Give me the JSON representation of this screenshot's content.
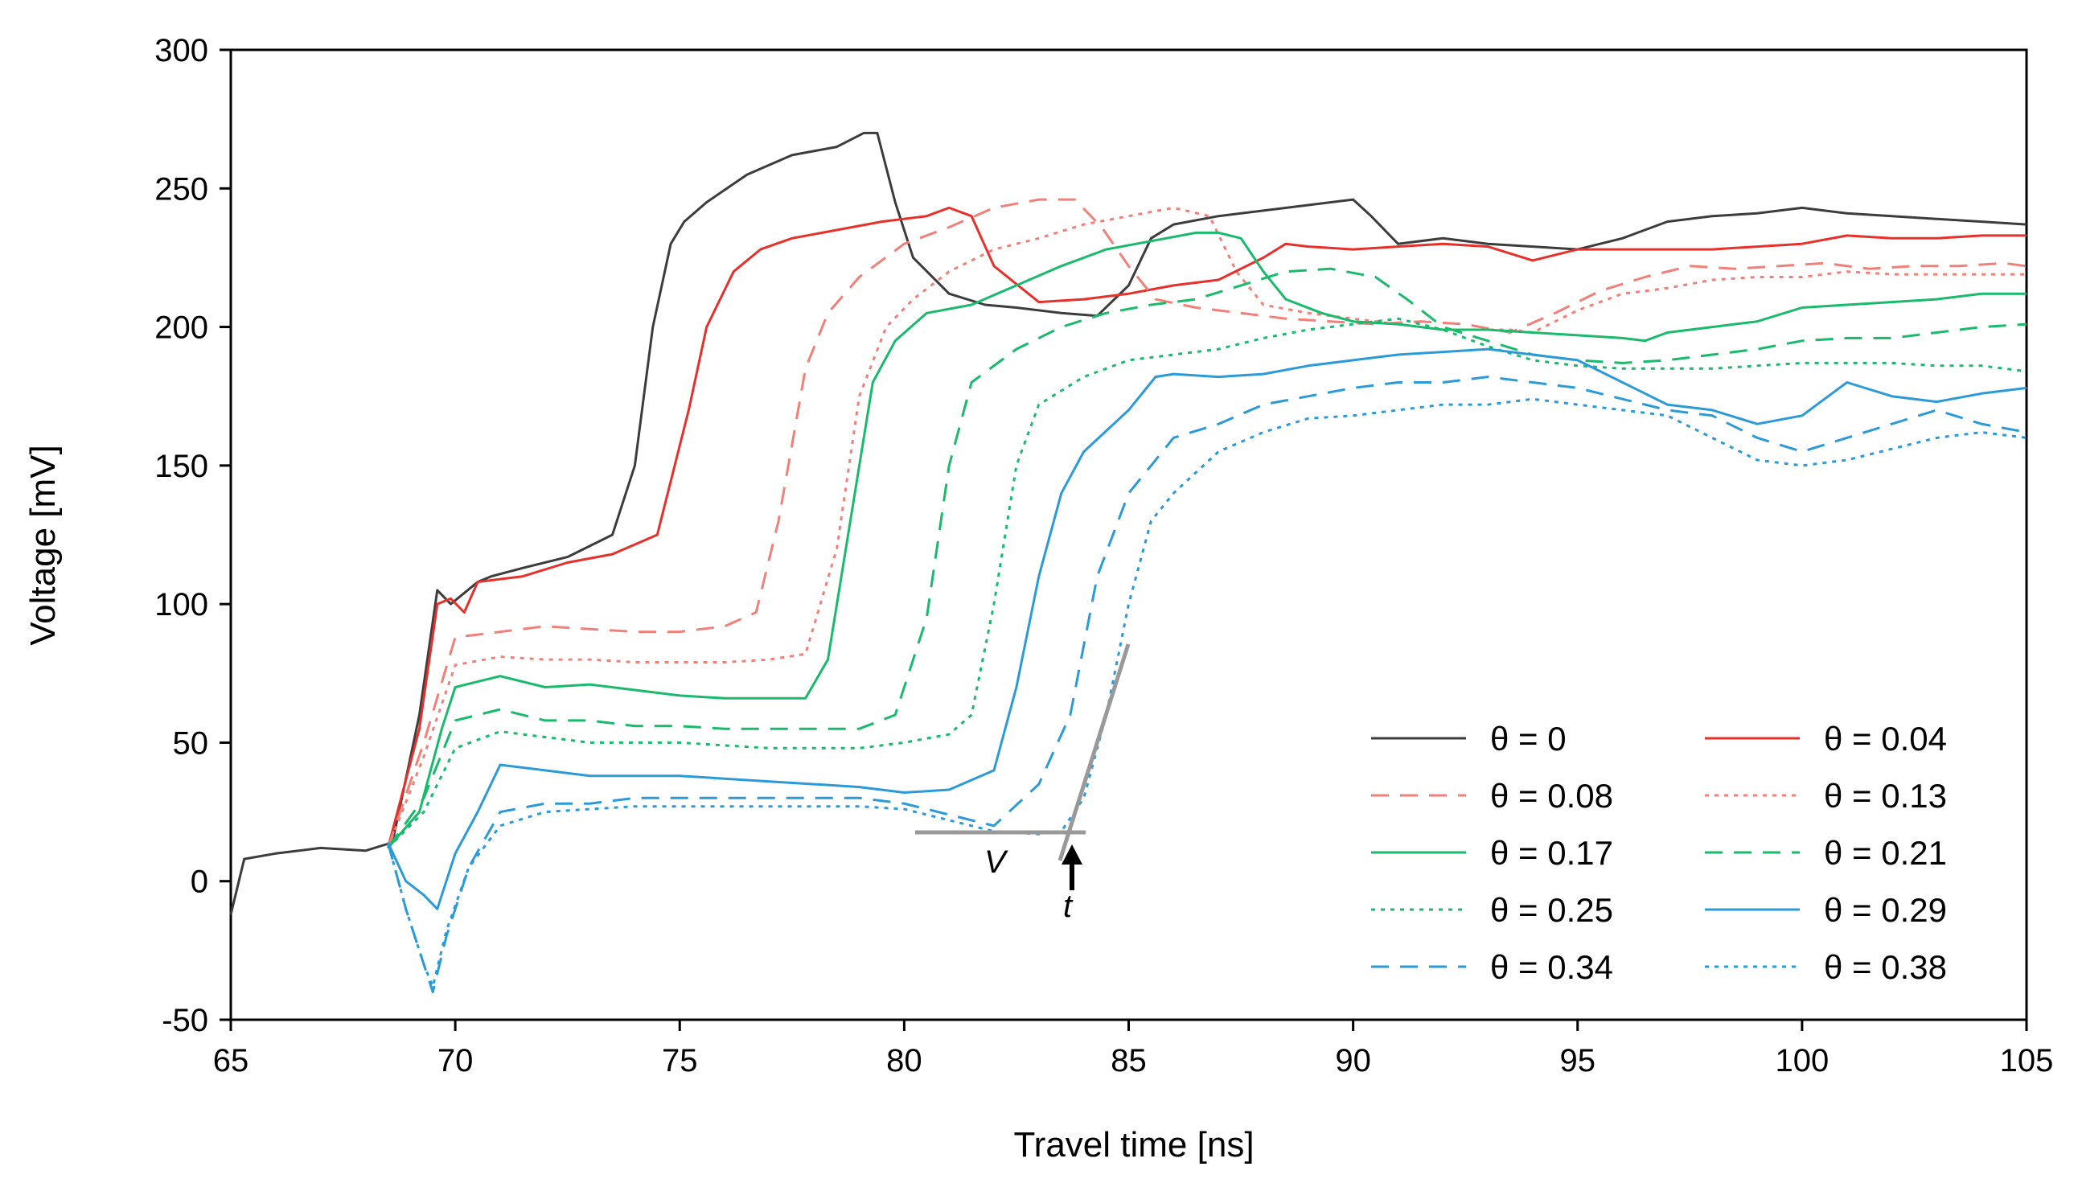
{
  "chart_data": {
    "type": "line",
    "title": "",
    "xlabel": "Travel time [ns]",
    "ylabel": "Voltage [mV]",
    "xlim": [
      65,
      105
    ],
    "ylim": [
      -50,
      300
    ],
    "xticks": [
      "65",
      "70",
      "75",
      "80",
      "85",
      "90",
      "95",
      "100",
      "105"
    ],
    "yticks": [
      "-50",
      "0",
      "50",
      "100",
      "150",
      "200",
      "250",
      "300"
    ],
    "grid": false,
    "legend_position": "bottom-right",
    "series": [
      {
        "name": "θ = 0",
        "color": "#3c3c3c",
        "dash": "solid",
        "x": [
          65,
          65.3,
          66,
          67,
          68,
          68.6,
          69.2,
          69.6,
          69.9,
          70.2,
          70.5,
          70.8,
          71.5,
          72.5,
          73.5,
          74,
          74.4,
          74.8,
          75.1,
          75.6,
          76.5,
          77.5,
          78.5,
          79.1,
          79.4,
          79.8,
          80.2,
          81,
          81.8,
          82.5,
          83.5,
          84.3,
          85,
          85.5,
          86,
          87,
          88,
          89,
          90,
          90.4,
          91,
          92,
          93,
          94,
          95,
          96,
          97,
          98,
          99,
          100,
          101,
          102,
          103,
          104,
          105
        ],
        "y": [
          -12,
          8,
          10,
          12,
          11,
          14,
          60,
          105,
          100,
          104,
          108,
          110,
          113,
          117,
          125,
          150,
          200,
          230,
          238,
          245,
          255,
          262,
          265,
          270,
          270,
          245,
          225,
          212,
          208,
          207,
          205,
          204,
          215,
          232,
          237,
          240,
          242,
          244,
          246,
          240,
          230,
          232,
          230,
          229,
          228,
          232,
          238,
          240,
          241,
          243,
          241,
          240,
          239,
          238,
          237
        ]
      },
      {
        "name": "θ = 0.04",
        "color": "#e8302a",
        "dash": "solid",
        "x": [
          68.5,
          69.2,
          69.6,
          69.9,
          70.2,
          70.5,
          71.5,
          72.5,
          73.5,
          74.5,
          75.2,
          75.6,
          76.2,
          76.8,
          77.5,
          78.5,
          79.5,
          80.5,
          81,
          81.5,
          82,
          83,
          84,
          85,
          86,
          87,
          88,
          88.5,
          89,
          90,
          91,
          92,
          93,
          94,
          95,
          96,
          97,
          98,
          99,
          100,
          101,
          102,
          103,
          104,
          105
        ],
        "y": [
          12,
          55,
          100,
          102,
          97,
          108,
          110,
          115,
          118,
          125,
          170,
          200,
          220,
          228,
          232,
          235,
          238,
          240,
          243,
          240,
          222,
          209,
          210,
          212,
          215,
          217,
          225,
          230,
          229,
          228,
          229,
          230,
          229,
          224,
          228,
          228,
          228,
          228,
          229,
          230,
          233,
          232,
          232,
          233,
          233
        ]
      },
      {
        "name": "θ = 0.08",
        "color": "#f28078",
        "dash": "long",
        "x": [
          68.5,
          69.3,
          70,
          71,
          72,
          73,
          74,
          75,
          76,
          76.7,
          77.2,
          77.8,
          78.3,
          79,
          80,
          81,
          82,
          83,
          83.8,
          84.4,
          85,
          85.6,
          86.5,
          87.5,
          88.5,
          89.5,
          90.5,
          91.5,
          92.5,
          93.5,
          94.5,
          95.5,
          96.5,
          97.5,
          98.5,
          99.5,
          100.5,
          101.5,
          102.5,
          103.5,
          104.5,
          105
        ],
        "y": [
          12,
          50,
          88,
          90,
          92,
          91,
          90,
          90,
          92,
          97,
          130,
          185,
          205,
          218,
          230,
          236,
          243,
          246,
          246,
          236,
          222,
          210,
          207,
          205,
          203,
          202,
          201,
          202,
          201,
          198,
          205,
          213,
          218,
          222,
          221,
          222,
          223,
          221,
          222,
          222,
          223,
          222
        ]
      },
      {
        "name": "θ = 0.13",
        "color": "#f28078",
        "dash": "dot",
        "x": [
          68.5,
          69.3,
          70,
          71,
          72,
          73,
          74,
          75,
          76,
          77,
          77.8,
          78.5,
          79,
          79.6,
          80.2,
          81,
          82,
          83,
          84,
          85,
          86,
          86.8,
          87.4,
          88,
          89,
          90,
          91,
          92,
          93,
          93.5,
          94,
          95,
          96,
          97,
          98,
          99,
          100,
          101,
          102,
          103,
          104,
          105
        ],
        "y": [
          12,
          45,
          78,
          81,
          80,
          80,
          79,
          79,
          79,
          80,
          82,
          120,
          175,
          200,
          210,
          220,
          228,
          232,
          237,
          240,
          243,
          240,
          220,
          208,
          205,
          203,
          201,
          199,
          199,
          199,
          198,
          206,
          212,
          214,
          217,
          218,
          218,
          220,
          219,
          219,
          219,
          219
        ]
      },
      {
        "name": "θ = 0.17",
        "color": "#1aba6c",
        "dash": "solid",
        "x": [
          68.5,
          69.2,
          69.7,
          70,
          70.5,
          71,
          72,
          73,
          74,
          75,
          76,
          77,
          77.8,
          78.3,
          78.8,
          79.3,
          79.8,
          80.5,
          81.5,
          82.5,
          83.5,
          84.5,
          85.5,
          86.5,
          87,
          87.5,
          88,
          88.5,
          89.3,
          90,
          91,
          92,
          93,
          94,
          95,
          96,
          96.5,
          97,
          98,
          99,
          100,
          101,
          102,
          103,
          104,
          105
        ],
        "y": [
          12,
          25,
          55,
          70,
          72,
          74,
          70,
          71,
          69,
          67,
          66,
          66,
          66,
          80,
          130,
          180,
          195,
          205,
          208,
          215,
          222,
          228,
          231,
          234,
          234,
          232,
          220,
          210,
          205,
          202,
          201,
          199,
          199,
          198,
          197,
          196,
          195,
          198,
          200,
          202,
          207,
          208,
          209,
          210,
          212,
          212
        ]
      },
      {
        "name": "θ = 0.21",
        "color": "#1aba6c",
        "dash": "long",
        "x": [
          68.5,
          69.3,
          70,
          71,
          72,
          73,
          74,
          75,
          76,
          77,
          78,
          79,
          79.8,
          80.5,
          81,
          81.5,
          82.5,
          83.5,
          84.5,
          85.5,
          86.5,
          87.5,
          88.5,
          89.5,
          90.5,
          91.2,
          92,
          93,
          94,
          95,
          96,
          97,
          98,
          99,
          100,
          101,
          102,
          103,
          104,
          105
        ],
        "y": [
          12,
          30,
          58,
          62,
          58,
          58,
          56,
          56,
          55,
          55,
          55,
          55,
          60,
          95,
          150,
          180,
          192,
          200,
          205,
          208,
          210,
          215,
          220,
          221,
          218,
          210,
          200,
          195,
          190,
          188,
          187,
          188,
          190,
          192,
          195,
          196,
          196,
          198,
          200,
          201
        ]
      },
      {
        "name": "θ = 0.25",
        "color": "#1aba6c",
        "dash": "dot",
        "x": [
          68.5,
          69.3,
          70,
          71,
          72,
          73,
          74,
          75,
          76,
          77,
          78,
          79,
          80,
          81,
          81.5,
          82,
          82.5,
          83,
          84,
          85,
          86,
          87,
          88,
          89,
          90,
          91,
          92,
          93,
          94,
          95,
          96,
          97,
          98,
          99,
          100,
          101,
          102,
          103,
          104,
          105
        ],
        "y": [
          12,
          25,
          48,
          54,
          52,
          50,
          50,
          50,
          49,
          48,
          48,
          48,
          50,
          53,
          60,
          100,
          150,
          172,
          182,
          188,
          190,
          192,
          196,
          199,
          201,
          203,
          199,
          193,
          188,
          186,
          185,
          185,
          185,
          186,
          187,
          187,
          187,
          186,
          186,
          184
        ]
      },
      {
        "name": "θ = 0.29",
        "color": "#2a9ad9",
        "dash": "solid",
        "x": [
          68.5,
          68.9,
          69.3,
          69.6,
          70,
          70.5,
          71,
          72,
          73,
          74,
          75,
          76,
          77,
          78,
          79,
          80,
          81,
          82,
          82.5,
          83,
          83.5,
          84,
          85,
          85.6,
          86,
          87,
          88,
          89,
          90,
          91,
          92,
          93,
          94,
          95,
          96,
          97,
          98,
          99,
          100,
          101,
          102,
          103,
          104,
          105
        ],
        "y": [
          14,
          0,
          -5,
          -10,
          10,
          25,
          42,
          40,
          38,
          38,
          38,
          37,
          36,
          35,
          34,
          32,
          33,
          40,
          70,
          110,
          140,
          155,
          170,
          182,
          183,
          182,
          183,
          186,
          188,
          190,
          191,
          192,
          190,
          188,
          180,
          172,
          170,
          165,
          168,
          180,
          175,
          173,
          176,
          178
        ]
      },
      {
        "name": "θ = 0.34",
        "color": "#2a9ad9",
        "dash": "long",
        "x": [
          68.5,
          68.9,
          69.3,
          69.5,
          69.8,
          70.3,
          71,
          72,
          73,
          74,
          75,
          76,
          77,
          78,
          79,
          80,
          81,
          82,
          83,
          83.7,
          84.3,
          85,
          85.5,
          86,
          87,
          88,
          89,
          90,
          91,
          92,
          93,
          94,
          95,
          96,
          97,
          98,
          99,
          100,
          101,
          102,
          103,
          104,
          105
        ],
        "y": [
          14,
          -10,
          -30,
          -40,
          -20,
          5,
          25,
          28,
          28,
          30,
          30,
          30,
          30,
          30,
          30,
          28,
          24,
          20,
          35,
          60,
          110,
          140,
          150,
          160,
          165,
          172,
          175,
          178,
          180,
          180,
          182,
          180,
          178,
          174,
          170,
          168,
          160,
          155,
          160,
          165,
          170,
          165,
          162
        ]
      },
      {
        "name": "θ = 0.38",
        "color": "#2a9ad9",
        "dash": "dot",
        "x": [
          68.5,
          68.9,
          69.3,
          69.5,
          69.8,
          70.3,
          71,
          72,
          73,
          74,
          75,
          76,
          77,
          78,
          79,
          80,
          81,
          82,
          83,
          83.5,
          84,
          84.5,
          85,
          85.5,
          86,
          87,
          88,
          89,
          90,
          91,
          92,
          93,
          94,
          95,
          96,
          97,
          98,
          99,
          100,
          101,
          102,
          103,
          104,
          105
        ],
        "y": [
          14,
          -10,
          -30,
          -38,
          -18,
          5,
          20,
          25,
          26,
          27,
          27,
          27,
          27,
          27,
          27,
          26,
          22,
          18,
          17,
          18,
          30,
          60,
          100,
          130,
          140,
          155,
          162,
          167,
          168,
          170,
          172,
          172,
          174,
          172,
          170,
          168,
          160,
          152,
          150,
          152,
          156,
          160,
          162,
          160
        ]
      }
    ],
    "annotations": {
      "v_label": "V",
      "t_label": "t"
    }
  }
}
